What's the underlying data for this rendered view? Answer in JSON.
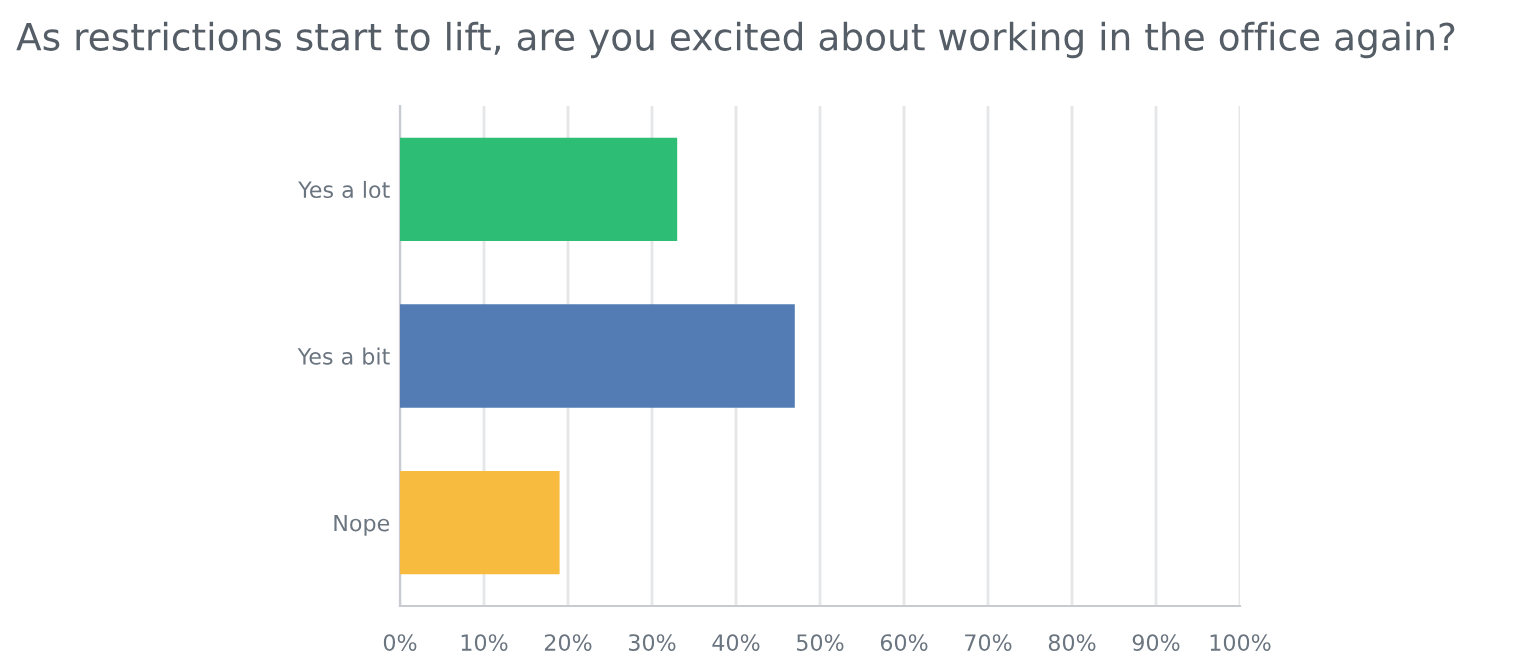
{
  "chart_data": {
    "type": "bar",
    "orientation": "horizontal",
    "title": "As restrictions start to lift, are you excited about working in the office again?",
    "categories": [
      "Yes a lot",
      "Yes a bit",
      "Nope"
    ],
    "values": [
      33,
      47,
      19
    ],
    "colors": [
      "#2dbd75",
      "#527cb3",
      "#f7bb3f"
    ],
    "xlim": [
      0,
      100
    ],
    "xticks": [
      {
        "value": 0,
        "label": "0%"
      },
      {
        "value": 10,
        "label": "10%"
      },
      {
        "value": 20,
        "label": "20%"
      },
      {
        "value": 30,
        "label": "30%"
      },
      {
        "value": 40,
        "label": "40%"
      },
      {
        "value": 50,
        "label": "50%"
      },
      {
        "value": 60,
        "label": "60%"
      },
      {
        "value": 70,
        "label": "70%"
      },
      {
        "value": 80,
        "label": "80%"
      },
      {
        "value": 90,
        "label": "90%"
      },
      {
        "value": 100,
        "label": "100%"
      }
    ],
    "grid": "x"
  }
}
